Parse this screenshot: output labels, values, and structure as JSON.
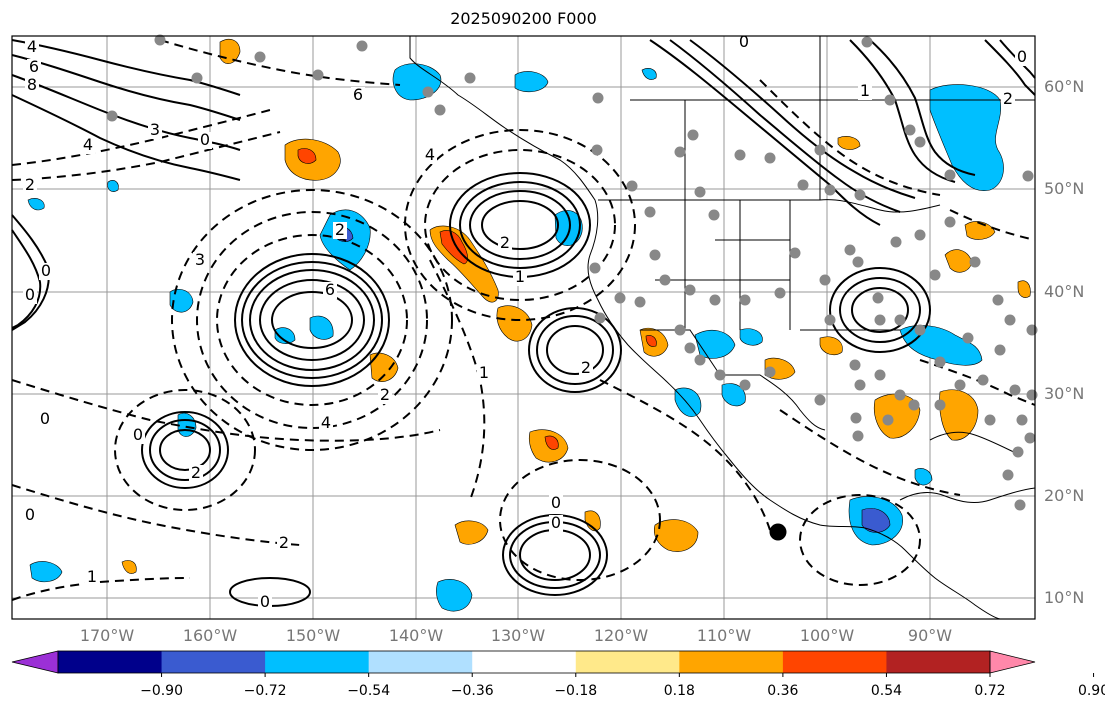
{
  "title": "2025090200 F000",
  "map": {
    "lat_labels": [
      "60°N",
      "50°N",
      "40°N",
      "30°N",
      "20°N",
      "10°N"
    ],
    "lon_labels": [
      "170°W",
      "160°W",
      "150°W",
      "140°W",
      "130°W",
      "120°W",
      "110°W",
      "100°W",
      "90°W"
    ],
    "contour_labels": [
      "4",
      "6",
      "8",
      "4",
      "2",
      "3",
      "0",
      "6",
      "2",
      "4",
      "2",
      "6",
      "0",
      "0",
      "3",
      "2",
      "1",
      "4",
      "2",
      "2",
      "0",
      "0",
      "2",
      "1",
      "0",
      "1",
      "2",
      "0",
      "0",
      "1",
      "0",
      "0",
      "0"
    ],
    "station_marker_icon": "circle-dot-icon",
    "location_marker_icon": "black-dot-icon"
  },
  "colorbar": {
    "tick_labels": [
      "−0.90",
      "−0.72",
      "−0.54",
      "−0.36",
      "−0.18",
      "0.18",
      "0.36",
      "0.54",
      "0.72",
      "0.90"
    ],
    "colors": [
      "#9b30d6",
      "#00008b",
      "#3a5bd0",
      "#00bfff",
      "#b0e0ff",
      "#ffffff",
      "#ffe98a",
      "#ffa500",
      "#ff4500",
      "#b22222",
      "#ff88aa"
    ]
  }
}
